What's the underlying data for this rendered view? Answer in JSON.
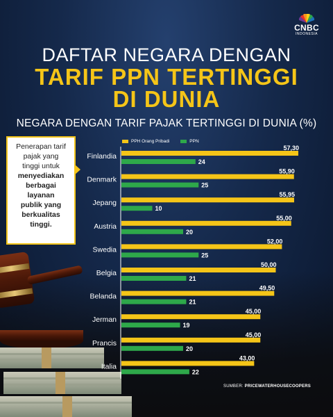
{
  "brand": {
    "name": "CNBC",
    "sub": "INDONESIA"
  },
  "title": {
    "line1": "DAFTAR NEGARA DENGAN",
    "line2": "TARIF PPN TERTINGGI",
    "line3": "DI DUNIA"
  },
  "callout": {
    "line1": "Penerapan tarif",
    "line2": "pajak yang",
    "line3": "tinggi untuk",
    "bold1": "menyediakan",
    "bold2": "berbagai",
    "bold3": "layanan",
    "bold4": "publik yang",
    "bold5": "berkualitas",
    "bold6": "tinggi."
  },
  "source": {
    "label": "SUMBER:",
    "name": "PRICEWATERHOUSECOOPERS"
  },
  "colors": {
    "yellow": "#f5c518",
    "green": "#2ea84a",
    "white": "#ffffff"
  },
  "chart_data": {
    "type": "bar",
    "orientation": "horizontal",
    "title": "NEGARA DENGAN TARIF PAJAK TERTINGGI DI DUNIA (%)",
    "categories": [
      "Finlandia",
      "Denmark",
      "Jepang",
      "Austria",
      "Swedia",
      "Belgia",
      "Belanda",
      "Jerman",
      "Prancis",
      "Italia"
    ],
    "series": [
      {
        "name": "PPH Orang Pribadi",
        "color": "#f5c518",
        "values": [
          57.3,
          55.9,
          55.95,
          55.0,
          52.0,
          50.0,
          49.5,
          45.0,
          45.0,
          43.0
        ],
        "labels": [
          "57,30",
          "55,90",
          "55,95",
          "55,00",
          "52,00",
          "50,00",
          "49,50",
          "45,00",
          "45,00",
          "43,00"
        ]
      },
      {
        "name": "PPN",
        "color": "#2ea84a",
        "values": [
          24,
          25,
          10,
          20,
          25,
          21,
          21,
          19,
          20,
          22
        ],
        "labels": [
          "24",
          "25",
          "10",
          "20",
          "25",
          "21",
          "21",
          "19",
          "20",
          "22"
        ]
      }
    ],
    "grid": false,
    "legend": "top"
  }
}
